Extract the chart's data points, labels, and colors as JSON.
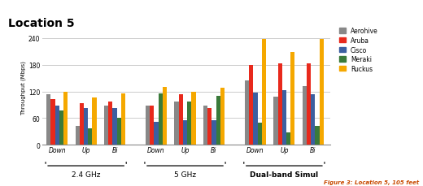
{
  "title": "Location 5",
  "ylabel": "Throughput (Mbps)",
  "figure_caption": "Figure 3: Location 5, 105 feet",
  "groups": [
    "Down",
    "Up",
    "Bi",
    "Down",
    "Up",
    "Bi",
    "Down",
    "Up",
    "Bi"
  ],
  "group_labels": [
    "2.4 GHz",
    "5 GHz",
    "Dual-band Simul"
  ],
  "series": {
    "Aerohive": {
      "color": "#888888",
      "values": [
        113,
        43,
        88,
        88,
        98,
        88,
        145,
        108,
        132
      ]
    },
    "Aruba": {
      "color": "#e8291c",
      "values": [
        103,
        93,
        98,
        88,
        113,
        83,
        180,
        183,
        183
      ]
    },
    "Cisco": {
      "color": "#3c5fa0",
      "values": [
        88,
        83,
        83,
        52,
        55,
        55,
        118,
        122,
        113
      ]
    },
    "Meraki": {
      "color": "#3a7a3a",
      "values": [
        78,
        38,
        60,
        115,
        98,
        110,
        50,
        28,
        42
      ]
    },
    "Ruckus": {
      "color": "#f5a800",
      "values": [
        120,
        107,
        115,
        130,
        120,
        128,
        238,
        208,
        237
      ]
    }
  },
  "ylim": [
    0,
    260
  ],
  "yticks": [
    0,
    60,
    120,
    180,
    240
  ],
  "background_color": "#ffffff",
  "grid_color": "#cccccc",
  "caption_color": "#c84a00"
}
